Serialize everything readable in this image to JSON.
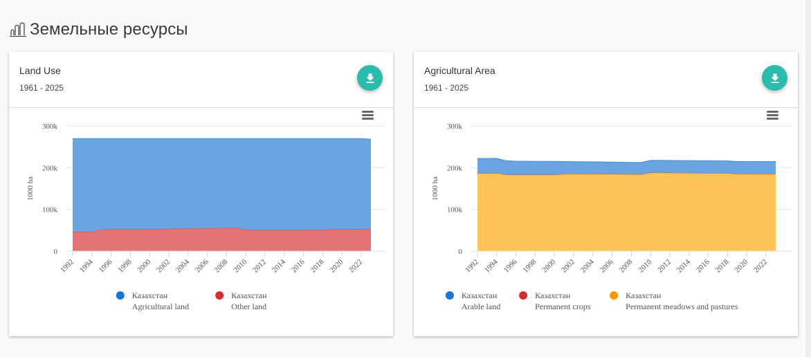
{
  "page": {
    "title": "Земельные ресурсы",
    "icon": "land-resources-icon"
  },
  "cards": [
    {
      "title": "Land Use",
      "period": "1961 - 2025",
      "download_icon": "download-icon",
      "menu_icon": "hamburger-menu-icon"
    },
    {
      "title": "Agricultural Area",
      "period": "1961 - 2025",
      "download_icon": "download-icon",
      "menu_icon": "hamburger-menu-icon"
    }
  ],
  "chart_data": [
    {
      "type": "area",
      "stacked": true,
      "title": "Land Use",
      "subtitle": "1961 - 2025",
      "xlabel": "",
      "ylabel": "1000 ha",
      "ylim": [
        0,
        300000
      ],
      "yticks": [
        0,
        100000,
        200000,
        300000
      ],
      "ytick_labels": [
        "0",
        "100k",
        "200k",
        "300k"
      ],
      "xtick_labels": [
        "1992",
        "1994",
        "1996",
        "1998",
        "2000",
        "2002",
        "2004",
        "2006",
        "2008",
        "2010",
        "2012",
        "2014",
        "2016",
        "2018",
        "2020",
        "2022"
      ],
      "grid": true,
      "legend_position": "bottom",
      "x": [
        1992,
        1993,
        1994,
        1995,
        1996,
        1997,
        1998,
        1999,
        2000,
        2001,
        2002,
        2003,
        2004,
        2005,
        2006,
        2007,
        2008,
        2009,
        2010,
        2011,
        2012,
        2013,
        2014,
        2015,
        2016,
        2017,
        2018,
        2019,
        2020,
        2021,
        2022,
        2023
      ],
      "series": [
        {
          "name": "Казахстан Agricultural land",
          "country": "Казахстан",
          "label": "Agricultural land",
          "color": "#6aa5e2",
          "legend_color": "#1976d2",
          "values": [
            223500,
            223500,
            223500,
            218000,
            217500,
            217400,
            217300,
            217200,
            217100,
            216700,
            216400,
            216100,
            215800,
            215500,
            215200,
            214900,
            214600,
            213400,
            219000,
            219100,
            219200,
            219300,
            219300,
            219200,
            219100,
            219000,
            218900,
            216800,
            216800,
            216800,
            216800,
            215000
          ]
        },
        {
          "name": "Казахстан Other land",
          "country": "Казахстан",
          "label": "Other land",
          "color": "#e57373",
          "legend_color": "#d32f2f",
          "values": [
            46400,
            46400,
            46400,
            51900,
            52400,
            52500,
            52600,
            52700,
            52800,
            53200,
            53500,
            53800,
            54100,
            54400,
            54700,
            55000,
            55300,
            56500,
            50900,
            50800,
            50700,
            50600,
            50600,
            50700,
            50800,
            50900,
            51000,
            53100,
            53100,
            53100,
            53100,
            53100
          ]
        }
      ]
    },
    {
      "type": "area",
      "stacked": true,
      "title": "Agricultural Area",
      "subtitle": "1961 - 2025",
      "xlabel": "",
      "ylabel": "1000 ha",
      "ylim": [
        0,
        300000
      ],
      "yticks": [
        0,
        100000,
        200000,
        300000
      ],
      "ytick_labels": [
        "0",
        "100k",
        "200k",
        "300k"
      ],
      "xtick_labels": [
        "1992",
        "1994",
        "1996",
        "1998",
        "2000",
        "2002",
        "2004",
        "2006",
        "2008",
        "2010",
        "2012",
        "2014",
        "2016",
        "2018",
        "2020",
        "2022"
      ],
      "grid": true,
      "legend_position": "bottom",
      "x": [
        1992,
        1993,
        1994,
        1995,
        1996,
        1997,
        1998,
        1999,
        2000,
        2001,
        2002,
        2003,
        2004,
        2005,
        2006,
        2007,
        2008,
        2009,
        2010,
        2011,
        2012,
        2013,
        2014,
        2015,
        2016,
        2017,
        2018,
        2019,
        2020,
        2021,
        2022,
        2023
      ],
      "series": [
        {
          "name": "Казахстан Arable land",
          "country": "Казахстан",
          "label": "Arable land",
          "color": "#6aa5e2",
          "legend_color": "#1976d2",
          "values": [
            35500,
            35500,
            35500,
            33500,
            32500,
            32300,
            32100,
            32100,
            31900,
            29700,
            29300,
            29000,
            28800,
            28600,
            28400,
            28300,
            28200,
            28300,
            29300,
            29400,
            29400,
            29400,
            29400,
            29500,
            29500,
            29600,
            29600,
            29700,
            29700,
            29700,
            29700,
            29700
          ]
        },
        {
          "name": "Казахстан Permanent crops",
          "country": "Казахстан",
          "label": "Permanent crops",
          "color": "#e57373",
          "legend_color": "#d32f2f",
          "values": [
            150,
            150,
            150,
            140,
            140,
            140,
            130,
            130,
            130,
            130,
            130,
            130,
            130,
            130,
            130,
            130,
            130,
            130,
            130,
            130,
            130,
            130,
            130,
            130,
            130,
            130,
            130,
            130,
            130,
            130,
            130,
            130
          ]
        },
        {
          "name": "Казахстан Permanent meadows and pastures",
          "country": "Казахстан",
          "label": "Permanent meadows and pastures",
          "color": "#ffc35a",
          "legend_color": "#ff9800",
          "values": [
            186500,
            186500,
            187000,
            183000,
            183000,
            183000,
            183000,
            183000,
            183000,
            185000,
            185000,
            185000,
            185000,
            185000,
            184800,
            184500,
            184300,
            184200,
            188000,
            188000,
            187800,
            187600,
            187400,
            187200,
            187000,
            186800,
            186600,
            185000,
            185000,
            185000,
            185000,
            185000
          ]
        }
      ]
    }
  ]
}
